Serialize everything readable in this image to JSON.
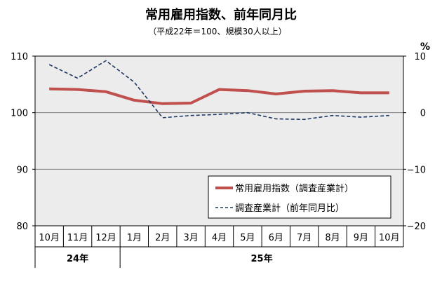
{
  "chart_data": {
    "type": "line",
    "title": "常用雇用指数、前年同月比",
    "subtitle": "（平成22年＝100、規模30人以上）",
    "categories": [
      "10月",
      "11月",
      "12月",
      "1月",
      "2月",
      "3月",
      "4月",
      "5月",
      "6月",
      "7月",
      "8月",
      "9月",
      "10月"
    ],
    "year_groups": [
      {
        "label": "24年",
        "start": 0,
        "end": 2
      },
      {
        "label": "25年",
        "start": 3,
        "end": 12
      }
    ],
    "left_axis": {
      "ylim": [
        80,
        110
      ],
      "ticks": [
        80,
        90,
        100,
        110
      ]
    },
    "right_axis": {
      "ylim": [
        -20,
        10
      ],
      "ticks": [
        -20,
        -10,
        0,
        10
      ],
      "tick_labels": [
        "−20",
        "−10",
        "0",
        "10"
      ],
      "unit": "%"
    },
    "grid": true,
    "legend_position": "lower-right",
    "series": [
      {
        "name": "常用雇用指数（調査産業計）",
        "axis": "left",
        "style": "solid",
        "color": "#c0504d",
        "values": [
          104.2,
          104.1,
          103.7,
          102.2,
          101.6,
          101.7,
          104.1,
          103.9,
          103.3,
          103.8,
          103.9,
          103.5,
          103.5
        ]
      },
      {
        "name": "調査産業計（前年同月比）",
        "axis": "right",
        "style": "dashed",
        "color": "#1f3864",
        "values": [
          8.5,
          6.1,
          9.2,
          5.4,
          -0.9,
          -0.5,
          -0.3,
          0.0,
          -1.1,
          -1.2,
          -0.5,
          -0.8,
          -0.5
        ]
      }
    ]
  }
}
